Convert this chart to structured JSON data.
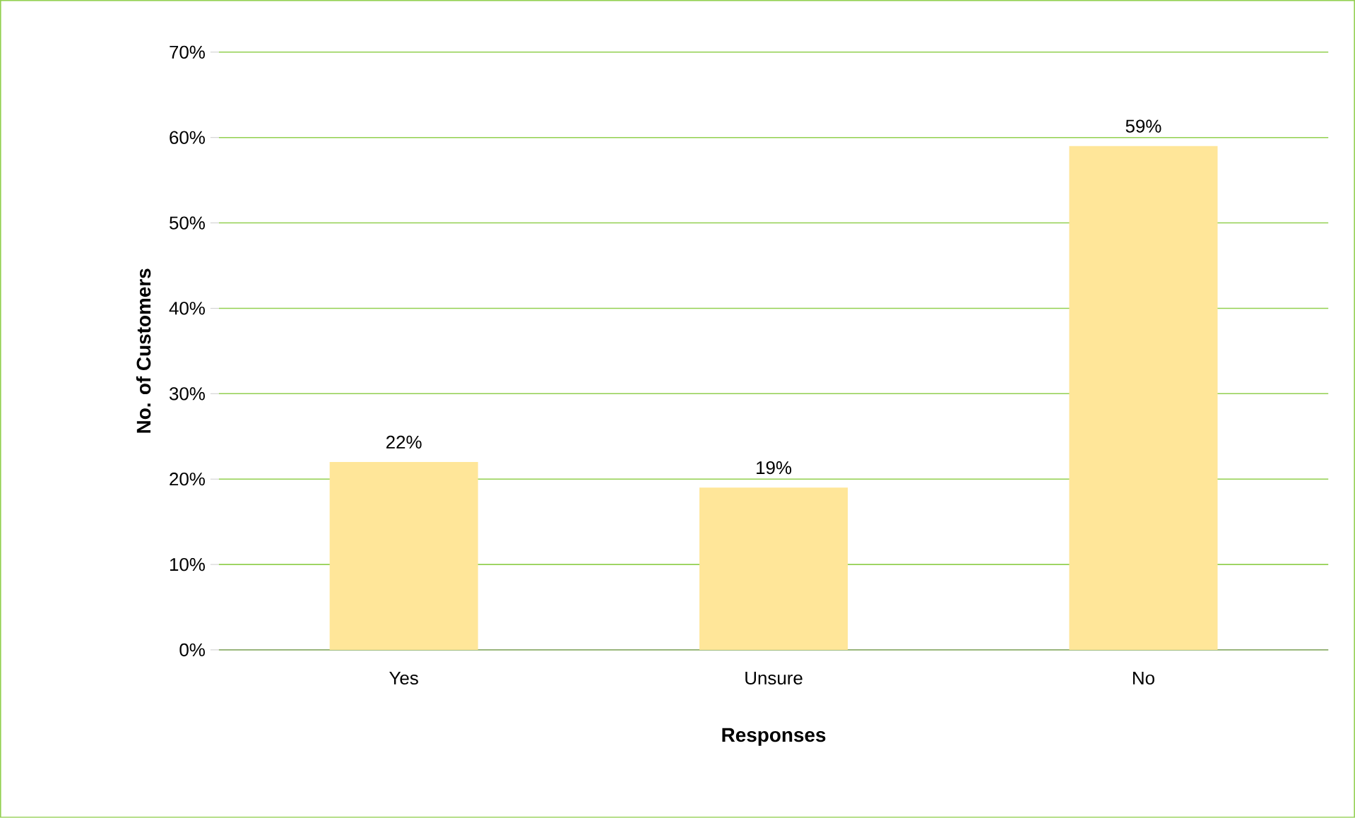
{
  "chart_data": {
    "type": "bar",
    "xlabel": "Responses",
    "ylabel": "No. of Customers",
    "categories": [
      "Yes",
      "Unsure",
      "No"
    ],
    "values": [
      22,
      19,
      59
    ],
    "value_labels": [
      "22%",
      "19%",
      "59%"
    ],
    "color": "#ffe699",
    "ylim": [
      0,
      70
    ],
    "yticks": [
      {
        "value": 0,
        "label": "0%"
      },
      {
        "value": 10,
        "label": "10%"
      },
      {
        "value": 20,
        "label": "20%"
      },
      {
        "value": 30,
        "label": "30%"
      },
      {
        "value": 40,
        "label": "40%"
      },
      {
        "value": 50,
        "label": "50%"
      },
      {
        "value": 60,
        "label": "60%"
      },
      {
        "value": 70,
        "label": "70%"
      }
    ],
    "grid": "y"
  }
}
